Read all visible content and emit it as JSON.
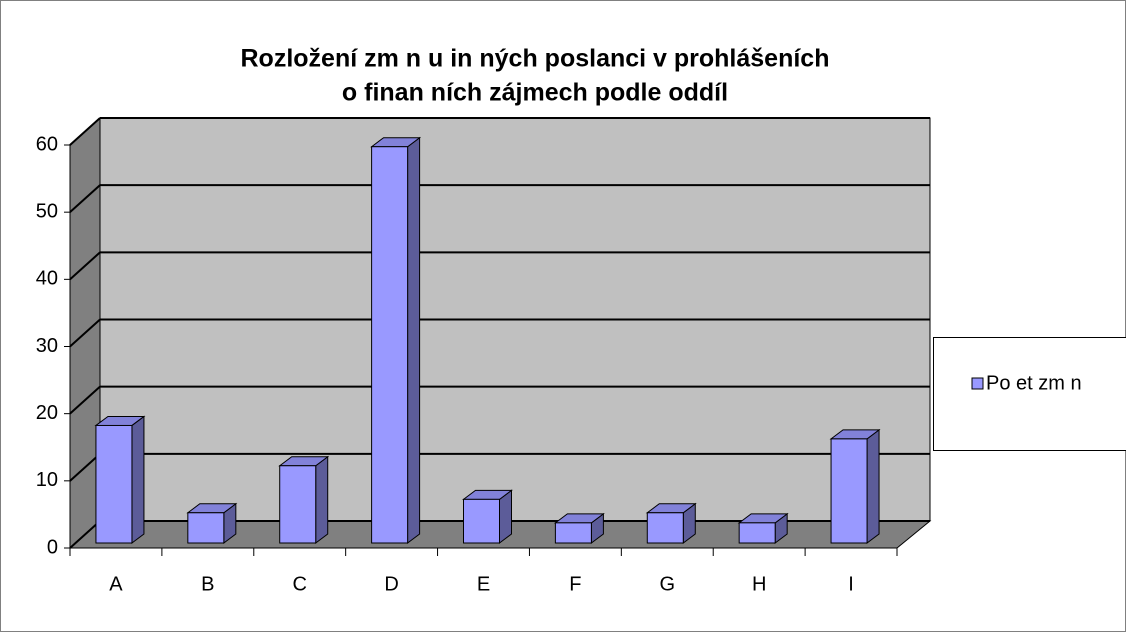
{
  "chart_data": {
    "type": "bar3d",
    "title": [
      "Rozložení zm  n u  in  ných poslanci v prohlášeních",
      "o finan  ních zájmech podle oddíl"
    ],
    "categories": [
      "A",
      "B",
      "C",
      "D",
      "E",
      "F",
      "G",
      "H",
      "I"
    ],
    "series": [
      {
        "name": "Po  et zm  n",
        "color": "#9999ff",
        "values": [
          17.5,
          4.5,
          11.5,
          59,
          6.5,
          3,
          4.5,
          3,
          15.5
        ]
      }
    ],
    "ylim": [
      0,
      60
    ],
    "yticks": [
      0,
      10,
      20,
      30,
      40,
      50,
      60
    ],
    "grid": true,
    "legend": "right"
  }
}
